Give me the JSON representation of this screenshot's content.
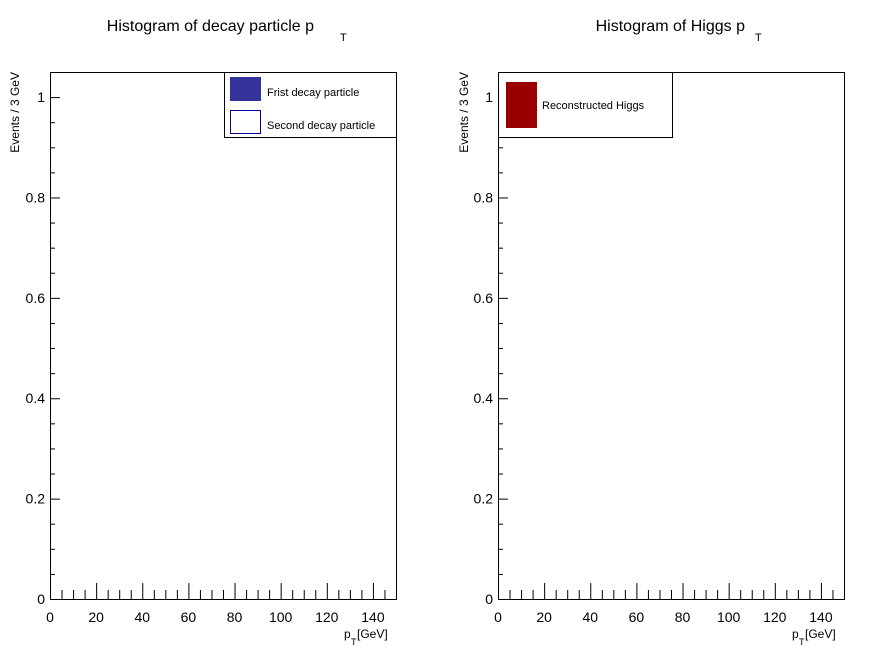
{
  "chart_data": [
    {
      "type": "bar",
      "title": "Histogram of decay particle p",
      "title_sub": "T",
      "ylabel": "Events / 3 GeV",
      "xlabel_main": "p",
      "xlabel_sub": "T",
      "xlabel_unit": " [GeV]",
      "xlim": [
        0,
        150
      ],
      "ylim": [
        0,
        1.05
      ],
      "x_ticks": [
        "0",
        "20",
        "40",
        "60",
        "80",
        "100",
        "120",
        "140"
      ],
      "y_ticks": [
        "0",
        "0.2",
        "0.4",
        "0.6",
        "0.8",
        "1"
      ],
      "legend_position": "top-right",
      "series": [
        {
          "name": "Frist decay particle",
          "values": [],
          "color": "#333399",
          "filled": true
        },
        {
          "name": "Second decay particle",
          "values": [],
          "color": "#000099",
          "filled": false
        }
      ]
    },
    {
      "type": "bar",
      "title": "Histogram of Higgs p",
      "title_sub": "T",
      "ylabel": "Events / 3 GeV",
      "xlabel_main": "p",
      "xlabel_sub": "T",
      "xlabel_unit": " [GeV]",
      "xlim": [
        0,
        150
      ],
      "ylim": [
        0,
        1.05
      ],
      "x_ticks": [
        "0",
        "20",
        "40",
        "60",
        "80",
        "100",
        "120",
        "140"
      ],
      "y_ticks": [
        "0",
        "0.2",
        "0.4",
        "0.6",
        "0.8",
        "1"
      ],
      "legend_position": "top-left",
      "series": [
        {
          "name": "Reconstructed Higgs",
          "values": [],
          "color": "#990000",
          "filled": true
        }
      ]
    }
  ]
}
